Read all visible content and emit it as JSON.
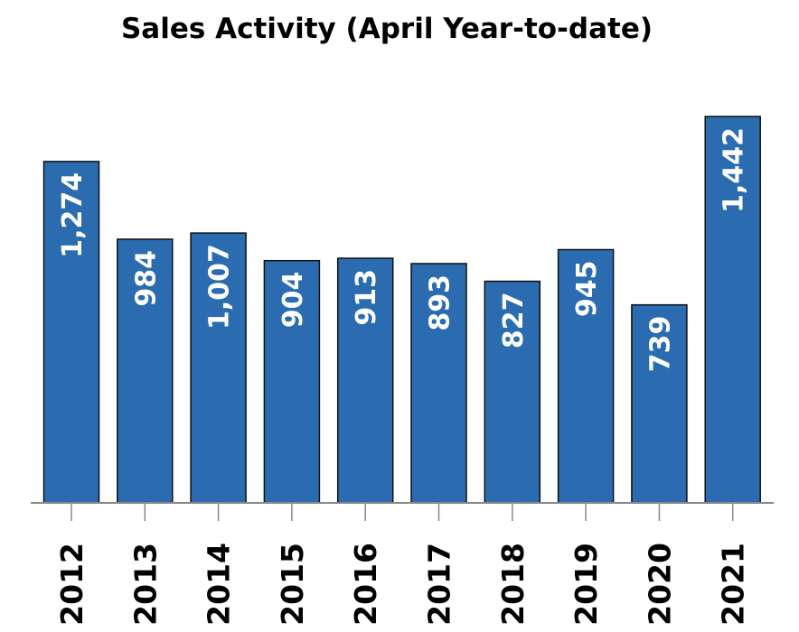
{
  "chart_data": {
    "type": "bar",
    "title": "Sales Activity (April Year-to-date)",
    "categories": [
      "2012",
      "2013",
      "2014",
      "2015",
      "2016",
      "2017",
      "2018",
      "2019",
      "2020",
      "2021"
    ],
    "values": [
      1274,
      984,
      1007,
      904,
      913,
      893,
      827,
      945,
      739,
      1442
    ],
    "value_labels": [
      "1,274",
      "984",
      "1,007",
      "904",
      "913",
      "893",
      "827",
      "945",
      "739",
      "1,442"
    ],
    "xlabel": "",
    "ylabel": "",
    "ylim": [
      0,
      1442
    ],
    "grid": false,
    "bar_color": "#2b6cb0",
    "bar_stroke": "#111111",
    "label_color": "#ffffff"
  }
}
